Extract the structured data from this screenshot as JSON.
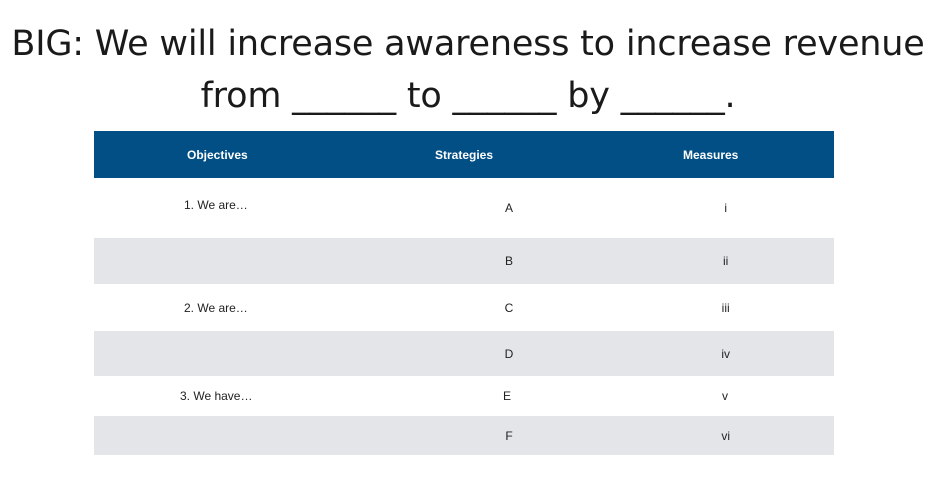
{
  "title": {
    "line1": "BIG: We will increase awareness to increase revenue",
    "line2": "from ______ to ______ by ______."
  },
  "table": {
    "headers": [
      "Objectives",
      "Strategies",
      "Measures"
    ],
    "rows": [
      {
        "objective": "1. We are…",
        "strategy": "A",
        "measure": "i"
      },
      {
        "objective": "",
        "strategy": "B",
        "measure": "ii"
      },
      {
        "objective": "2. We are…",
        "strategy": "C",
        "measure": "iii"
      },
      {
        "objective": "",
        "strategy": "D",
        "measure": "iv"
      },
      {
        "objective": "3. We have…",
        "strategy": "E",
        "measure": "v"
      },
      {
        "objective": "",
        "strategy": "F",
        "measure": "vi"
      }
    ]
  },
  "colors": {
    "header_background": "#024f85",
    "header_text": "#ffffff",
    "shaded_row": "#e4e5e8"
  }
}
